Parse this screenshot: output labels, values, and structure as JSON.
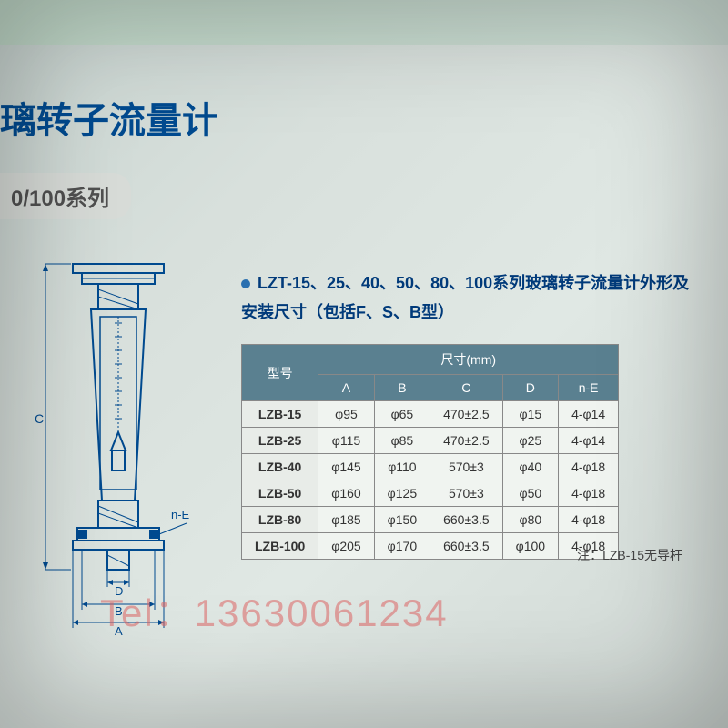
{
  "title": "璃转子流量计",
  "subtitle": "0/100系列",
  "description": "LZT-15、25、40、50、80、100系列玻璃转子流量计外形及安装尺寸（包括F、S、B型）",
  "table": {
    "model_header": "型号",
    "dim_header": "尺寸(mm)",
    "columns": [
      "A",
      "B",
      "C",
      "D",
      "n-E"
    ],
    "rows": [
      {
        "model": "LZB-15",
        "A": "φ95",
        "B": "φ65",
        "C": "470±2.5",
        "D": "φ15",
        "nE": "4-φ14"
      },
      {
        "model": "LZB-25",
        "A": "φ115",
        "B": "φ85",
        "C": "470±2.5",
        "D": "φ25",
        "nE": "4-φ14"
      },
      {
        "model": "LZB-40",
        "A": "φ145",
        "B": "φ110",
        "C": "570±3",
        "D": "φ40",
        "nE": "4-φ18"
      },
      {
        "model": "LZB-50",
        "A": "φ160",
        "B": "φ125",
        "C": "570±3",
        "D": "φ50",
        "nE": "4-φ18"
      },
      {
        "model": "LZB-80",
        "A": "φ185",
        "B": "φ150",
        "C": "660±3.5",
        "D": "φ80",
        "nE": "4-φ18"
      },
      {
        "model": "LZB-100",
        "A": "φ205",
        "B": "φ170",
        "C": "660±3.5",
        "D": "φ100",
        "nE": "4-φ18"
      }
    ]
  },
  "note": "注：LZB-15无导杆",
  "watermark": "Tel：13630061234",
  "diagram_labels": {
    "C": "C",
    "nE": "n-E",
    "D": "D",
    "B": "B",
    "A": "A"
  },
  "colors": {
    "title": "#004a8f",
    "table_header_bg": "#5a8090",
    "table_header_fg": "#ffffff",
    "watermark": "rgba(220,100,100,0.55)",
    "bg_tint": "#d8e0dc"
  }
}
